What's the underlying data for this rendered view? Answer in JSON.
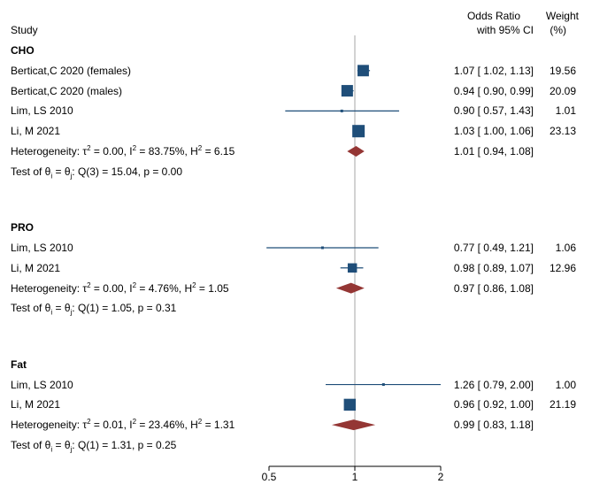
{
  "chart_data": {
    "type": "forest",
    "scale": "log",
    "xlim": [
      0.5,
      2
    ],
    "null_value": 1,
    "xticks": [
      {
        "value": 0.5,
        "label": "0.5"
      },
      {
        "value": 1,
        "label": "1"
      },
      {
        "value": 2,
        "label": "2"
      }
    ],
    "headers": {
      "study": "Study",
      "or_line1": "Odds Ratio",
      "or_line2": "with 95% CI",
      "weight_line1": "Weight",
      "weight_line2": "(%)"
    },
    "groups": [
      {
        "name": "CHO",
        "studies": [
          {
            "label": "Berticat,C 2020 (females)",
            "or": 1.07,
            "lo": 1.02,
            "hi": 1.13,
            "ci_text": "1.07 [ 1.02,  1.13]",
            "weight": 19.56,
            "weight_text": "19.56"
          },
          {
            "label": "Berticat,C 2020 (males)",
            "or": 0.94,
            "lo": 0.9,
            "hi": 0.99,
            "ci_text": "0.94 [ 0.90,  0.99]",
            "weight": 20.09,
            "weight_text": "20.09"
          },
          {
            "label": "Lim, LS 2010",
            "or": 0.9,
            "lo": 0.57,
            "hi": 1.43,
            "ci_text": "0.90 [ 0.57,  1.43]",
            "weight": 1.01,
            "weight_text": "1.01"
          },
          {
            "label": "Li, M 2021",
            "or": 1.03,
            "lo": 1.0,
            "hi": 1.06,
            "ci_text": "1.03 [ 1.00,  1.06]",
            "weight": 23.13,
            "weight_text": "23.13"
          }
        ],
        "pooled": {
          "or": 1.01,
          "lo": 0.94,
          "hi": 1.08,
          "ci_text": "1.01 [ 0.94,  1.08]"
        },
        "het": {
          "prefix": "Heterogeneity: τ",
          "tau2": " = 0.00, I",
          "i2": " = 83.75%, H",
          "h2": " = 6.15"
        },
        "test": {
          "prefix": "Test of θ",
          "mid": " = θ",
          "rest": ": Q(3) = 15.04, p = 0.00"
        }
      },
      {
        "name": "PRO",
        "studies": [
          {
            "label": "Lim, LS 2010",
            "or": 0.77,
            "lo": 0.49,
            "hi": 1.21,
            "ci_text": "0.77 [ 0.49,  1.21]",
            "weight": 1.06,
            "weight_text": "1.06"
          },
          {
            "label": "Li, M 2021",
            "or": 0.98,
            "lo": 0.89,
            "hi": 1.07,
            "ci_text": "0.98 [ 0.89,  1.07]",
            "weight": 12.96,
            "weight_text": "12.96"
          }
        ],
        "pooled": {
          "or": 0.97,
          "lo": 0.86,
          "hi": 1.08,
          "ci_text": "0.97 [ 0.86,  1.08]"
        },
        "het": {
          "prefix": "Heterogeneity: τ",
          "tau2": " = 0.00, I",
          "i2": " = 4.76%, H",
          "h2": " = 1.05"
        },
        "test": {
          "prefix": "Test of θ",
          "mid": " = θ",
          "rest": ": Q(1) = 1.05, p = 0.31"
        }
      },
      {
        "name": "Fat",
        "studies": [
          {
            "label": "Lim, LS 2010",
            "or": 1.26,
            "lo": 0.79,
            "hi": 2.0,
            "ci_text": "1.26 [ 0.79,  2.00]",
            "weight": 1.0,
            "weight_text": "1.00"
          },
          {
            "label": "Li, M 2021",
            "or": 0.96,
            "lo": 0.92,
            "hi": 1.0,
            "ci_text": "0.96 [ 0.92,  1.00]",
            "weight": 21.19,
            "weight_text": "21.19"
          }
        ],
        "pooled": {
          "or": 0.99,
          "lo": 0.83,
          "hi": 1.18,
          "ci_text": "0.99 [ 0.83,  1.18]"
        },
        "het": {
          "prefix": "Heterogeneity: τ",
          "tau2": " = 0.01, I",
          "i2": " = 23.46%, H",
          "h2": " = 1.31"
        },
        "test": {
          "prefix": "Test of θ",
          "mid": " = θ",
          "rest": ": Q(1) = 1.31, p = 0.25"
        }
      }
    ],
    "colors": {
      "study_marker": "#1f4e79",
      "ci_line": "#1f4e79",
      "diamond": "#943634",
      "null_line": "#a6a6a6",
      "axis": "#000000"
    }
  }
}
